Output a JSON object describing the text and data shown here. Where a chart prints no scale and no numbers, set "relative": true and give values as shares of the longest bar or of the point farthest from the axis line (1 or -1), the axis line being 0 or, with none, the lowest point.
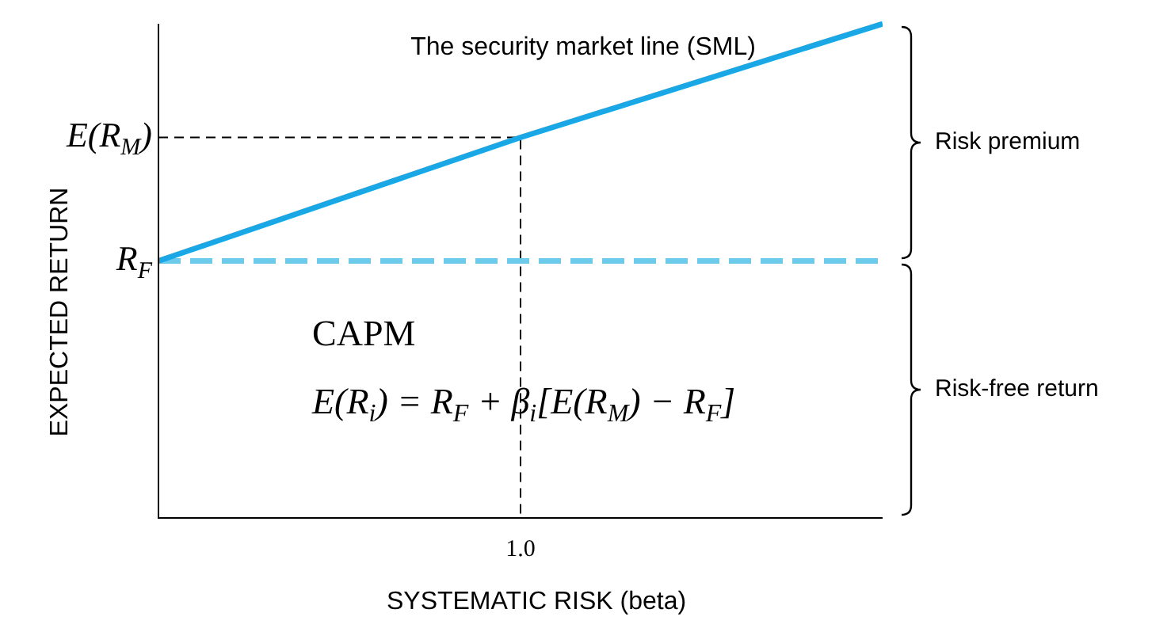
{
  "chart_data": {
    "type": "line",
    "relative": true,
    "title": "The security market line (SML)",
    "xlabel": "SYSTEMATIC RISK (beta)",
    "ylabel": "EXPECTED RETURN",
    "categories": [
      null,
      null,
      null
    ],
    "series": [
      {
        "color": "#1aa7e6",
        "values": [
          0.52,
          0.77,
          1
        ]
      },
      {
        "color": "#6ccbeb",
        "line_style": "dashed",
        "values": [
          0.52,
          0.52,
          0.52
        ]
      }
    ],
    "ref_lines": [
      {
        "axis": "y",
        "value": 0.77,
        "label": "E(R$_{M}$)",
        "line_style": "dashed",
        "color": "#000000"
      }
    ],
    "annotations": [
      "1.0",
      "CAPM",
      "E(R$_{i}$) = R$_{F}$ + β$_{i}$[E(R$_{M}$) − R$_{F}$]",
      "Risk premium",
      "Risk-free return",
      "R$_{F}$"
    ],
    "legend": false,
    "marker": "none"
  }
}
